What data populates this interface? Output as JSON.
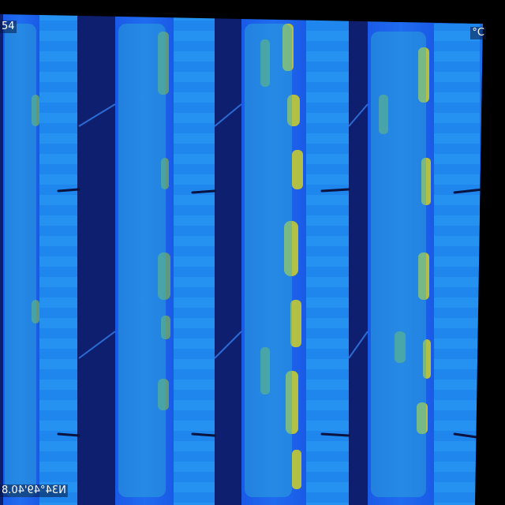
{
  "image": {
    "kind": "thermal aerial image",
    "palette": [
      "#0a1560",
      "#1f4fe0",
      "#1e8cff",
      "#18b6c8",
      "#a8c21e",
      "#e6d81a"
    ],
    "background": "#000000"
  },
  "overlay": {
    "temp_top_left": "54",
    "unit_top_right": "°C",
    "coords_bottom_left": "N34°49'40.8",
    "coords_bottom_left_line2": ""
  }
}
